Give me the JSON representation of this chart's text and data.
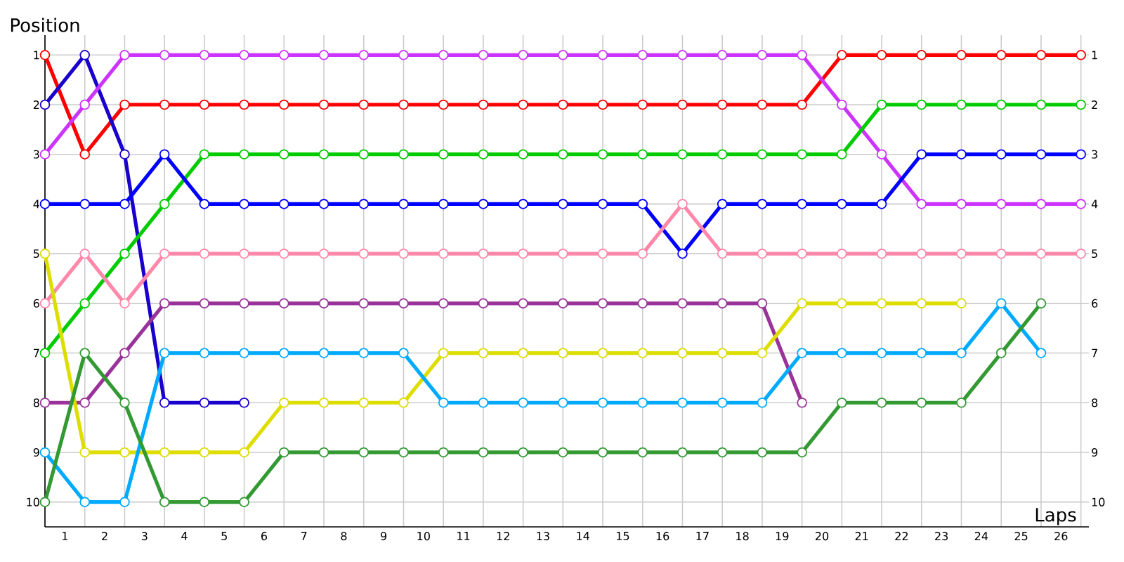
{
  "chart_data": {
    "type": "line",
    "xlabel": "Laps",
    "ylabel": "Position",
    "x": [
      0,
      1,
      2,
      3,
      4,
      5,
      6,
      7,
      8,
      9,
      10,
      11,
      12,
      13,
      14,
      15,
      16,
      17,
      18,
      19,
      20,
      21,
      22,
      23,
      24,
      25,
      26
    ],
    "xlim": [
      0,
      26.2
    ],
    "xticks": [
      {
        "value": 0,
        "label": null
      },
      {
        "value": 1,
        "label": null
      },
      {
        "value": 2,
        "label": null
      },
      {
        "value": 3,
        "label": null
      },
      {
        "value": 4,
        "label": null
      },
      {
        "value": 5,
        "label": null
      },
      {
        "value": 6,
        "label": null
      },
      {
        "value": 7,
        "label": null
      },
      {
        "value": 8,
        "label": null
      },
      {
        "value": 9,
        "label": null
      },
      {
        "value": 10,
        "label": null
      },
      {
        "value": 11,
        "label": null
      },
      {
        "value": 12,
        "label": null
      },
      {
        "value": 13,
        "label": null
      },
      {
        "value": 14,
        "label": null
      },
      {
        "value": 15,
        "label": null
      },
      {
        "value": 16,
        "label": null
      },
      {
        "value": 17,
        "label": null
      },
      {
        "value": 18,
        "label": null
      },
      {
        "value": 19,
        "label": null
      },
      {
        "value": 20,
        "label": null
      },
      {
        "value": 21,
        "label": null
      },
      {
        "value": 22,
        "label": null
      },
      {
        "value": 23,
        "label": null
      },
      {
        "value": 24,
        "label": null
      },
      {
        "value": 25,
        "label": null
      },
      {
        "value": 26,
        "label": null
      },
      {
        "value": 0.5,
        "label": "1"
      },
      {
        "value": 1.5,
        "label": "2"
      },
      {
        "value": 2.5,
        "label": "3"
      },
      {
        "value": 3.5,
        "label": "4"
      },
      {
        "value": 4.5,
        "label": "5"
      },
      {
        "value": 5.5,
        "label": "6"
      },
      {
        "value": 6.5,
        "label": "7"
      },
      {
        "value": 7.5,
        "label": "8"
      },
      {
        "value": 8.5,
        "label": "9"
      },
      {
        "value": 9.5,
        "label": "10"
      },
      {
        "value": 10.5,
        "label": "11"
      },
      {
        "value": 11.5,
        "label": "12"
      },
      {
        "value": 12.5,
        "label": "13"
      },
      {
        "value": 13.5,
        "label": "14"
      },
      {
        "value": 14.5,
        "label": "15"
      },
      {
        "value": 15.5,
        "label": "16"
      },
      {
        "value": 16.5,
        "label": "17"
      },
      {
        "value": 17.5,
        "label": "18"
      },
      {
        "value": 18.5,
        "label": "19"
      },
      {
        "value": 19.5,
        "label": "20"
      },
      {
        "value": 20.5,
        "label": "21"
      },
      {
        "value": 21.5,
        "label": "22"
      },
      {
        "value": 22.5,
        "label": "23"
      },
      {
        "value": 23.5,
        "label": "24"
      },
      {
        "value": 24.5,
        "label": "25"
      },
      {
        "value": 25.5,
        "label": "26"
      }
    ],
    "ylim": [
      10.5,
      0.6
    ],
    "yticks": [
      1,
      2,
      3,
      4,
      5,
      6,
      7,
      8,
      9,
      10
    ],
    "y2lim": [
      10.5,
      0.6
    ],
    "y2ticks": [
      1,
      2,
      3,
      4,
      5,
      6,
      7,
      8,
      9,
      10
    ],
    "grid": true,
    "marker": "circle",
    "line_style": "solid",
    "series": [
      {
        "color": "#ff0000",
        "values": [
          1,
          3,
          2,
          2,
          2,
          2,
          2,
          2,
          2,
          2,
          2,
          2,
          2,
          2,
          2,
          2,
          2,
          2,
          2,
          2,
          1,
          1,
          1,
          1,
          1,
          1,
          1
        ]
      },
      {
        "color": "#1a00cc",
        "values": [
          2,
          1,
          3,
          8,
          8,
          8,
          null,
          null,
          null,
          null,
          null,
          null,
          null,
          null,
          null,
          null,
          null,
          null,
          null,
          null,
          null,
          null,
          null,
          null,
          null,
          null,
          null
        ]
      },
      {
        "color": "#cc33ff",
        "values": [
          3,
          2,
          1,
          1,
          1,
          1,
          1,
          1,
          1,
          1,
          1,
          1,
          1,
          1,
          1,
          1,
          1,
          1,
          1,
          1,
          2,
          3,
          4,
          4,
          4,
          4,
          4
        ]
      },
      {
        "color": "#00cc00",
        "values": [
          7,
          6,
          5,
          4,
          3,
          3,
          3,
          3,
          3,
          3,
          3,
          3,
          3,
          3,
          3,
          3,
          3,
          3,
          3,
          3,
          3,
          2,
          2,
          2,
          2,
          2,
          2
        ]
      },
      {
        "color": "#0000ff",
        "values": [
          4,
          4,
          4,
          3,
          4,
          4,
          4,
          4,
          4,
          4,
          4,
          4,
          4,
          4,
          4,
          4,
          5,
          4,
          4,
          4,
          4,
          4,
          3,
          3,
          3,
          3,
          3
        ]
      },
      {
        "color": "#ff88aa",
        "values": [
          6,
          5,
          6,
          5,
          5,
          5,
          5,
          5,
          5,
          5,
          5,
          5,
          5,
          5,
          5,
          5,
          4,
          5,
          5,
          5,
          5,
          5,
          5,
          5,
          5,
          5,
          5
        ]
      },
      {
        "color": "#993399",
        "values": [
          8,
          8,
          7,
          6,
          6,
          6,
          6,
          6,
          6,
          6,
          6,
          6,
          6,
          6,
          6,
          6,
          6,
          6,
          6,
          8,
          null,
          null,
          null,
          null,
          null,
          null,
          null
        ]
      },
      {
        "color": "#dddd00",
        "values": [
          5,
          9,
          9,
          9,
          9,
          9,
          8,
          8,
          8,
          8,
          7,
          7,
          7,
          7,
          7,
          7,
          7,
          7,
          7,
          6,
          6,
          6,
          6,
          6,
          null,
          null,
          null
        ]
      },
      {
        "color": "#00aaff",
        "values": [
          9,
          10,
          10,
          7,
          7,
          7,
          7,
          7,
          7,
          7,
          8,
          8,
          8,
          8,
          8,
          8,
          8,
          8,
          8,
          7,
          7,
          7,
          7,
          7,
          6,
          7,
          null
        ]
      },
      {
        "color": "#339933",
        "values": [
          10,
          7,
          8,
          10,
          10,
          10,
          9,
          9,
          9,
          9,
          9,
          9,
          9,
          9,
          9,
          9,
          9,
          9,
          9,
          9,
          8,
          8,
          8,
          8,
          7,
          6,
          null
        ]
      }
    ]
  }
}
